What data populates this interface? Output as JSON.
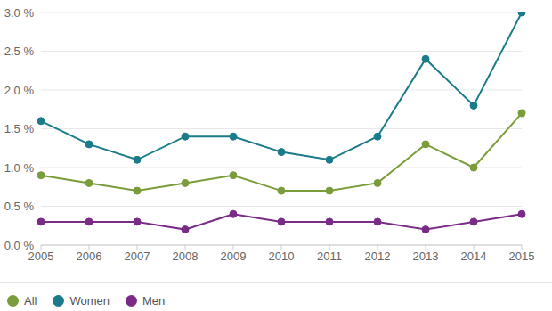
{
  "chart_data": {
    "type": "line",
    "categories": [
      "2005",
      "2006",
      "2007",
      "2008",
      "2009",
      "2010",
      "2011",
      "2012",
      "2013",
      "2014",
      "2015"
    ],
    "series": [
      {
        "name": "All",
        "color": "#7b9c3a",
        "values": [
          0.9,
          0.8,
          0.7,
          0.8,
          0.9,
          0.7,
          0.7,
          0.8,
          1.3,
          1.0,
          1.7
        ]
      },
      {
        "name": "Women",
        "color": "#1a7b8b",
        "values": [
          1.6,
          1.3,
          1.1,
          1.4,
          1.4,
          1.2,
          1.1,
          1.4,
          2.4,
          1.8,
          3.0
        ]
      },
      {
        "name": "Men",
        "color": "#7a2b87",
        "values": [
          0.3,
          0.3,
          0.3,
          0.2,
          0.4,
          0.3,
          0.3,
          0.3,
          0.2,
          0.3,
          0.4
        ]
      }
    ],
    "ylim": [
      0,
      3.0
    ],
    "yticks": [
      {
        "value": 0,
        "label": "0.0 %"
      },
      {
        "value": 0.5,
        "label": "0.5 %"
      },
      {
        "value": 1.0,
        "label": "1.0 %"
      },
      {
        "value": 1.5,
        "label": "1.5 %"
      },
      {
        "value": 2.0,
        "label": "2.0 %"
      },
      {
        "value": 2.5,
        "label": "2.5 %"
      },
      {
        "value": 3.0,
        "label": "3.0 %"
      }
    ],
    "grid": true,
    "legend": "bottom-left",
    "marker": "circle"
  }
}
